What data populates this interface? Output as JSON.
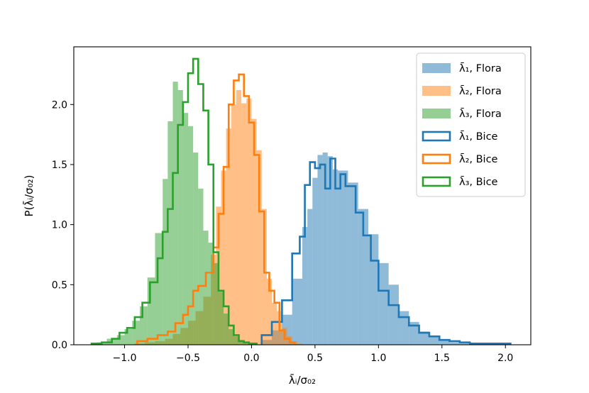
{
  "chart_data": {
    "type": "histogram",
    "xlabel": "λ̄ᵢ/σ₀₂",
    "ylabel": "P(λ̄ᵢ/σ₀₂)",
    "xlim": [
      -1.4,
      2.2
    ],
    "ylim": [
      0,
      2.48
    ],
    "xticks": [
      {
        "value": -1.0,
        "label": "−1.0"
      },
      {
        "value": -0.5,
        "label": "−0.5"
      },
      {
        "value": 0.0,
        "label": "0.0"
      },
      {
        "value": 0.5,
        "label": "0.5"
      },
      {
        "value": 1.0,
        "label": "1.0"
      },
      {
        "value": 1.5,
        "label": "1.5"
      },
      {
        "value": 2.0,
        "label": "2.0"
      }
    ],
    "yticks": [
      {
        "value": 0.0,
        "label": "0.0"
      },
      {
        "value": 0.5,
        "label": "0.5"
      },
      {
        "value": 1.0,
        "label": "1.0"
      },
      {
        "value": 1.5,
        "label": "1.5"
      },
      {
        "value": 2.0,
        "label": "2.0"
      }
    ],
    "legend": {
      "position": "upper right",
      "entries": [
        {
          "label": "λ̄₁, Flora",
          "color": "#1f77b4",
          "style": "filled"
        },
        {
          "label": "λ̄₂, Flora",
          "color": "#ff7f0e",
          "style": "filled"
        },
        {
          "label": "λ̄₃, Flora",
          "color": "#2ca02c",
          "style": "filled"
        },
        {
          "label": "λ̄₁, Bice",
          "color": "#1f77b4",
          "style": "step"
        },
        {
          "label": "λ̄₂, Bice",
          "color": "#ff7f0e",
          "style": "step"
        },
        {
          "label": "λ̄₃, Bice",
          "color": "#2ca02c",
          "style": "step"
        }
      ]
    },
    "series": [
      {
        "name": "λ̄₁, Flora",
        "style": "filled",
        "color": "#1f77b4",
        "opacity": 0.5,
        "edges": [
          0.08,
          0.16,
          0.24,
          0.32,
          0.4,
          0.44,
          0.48,
          0.52,
          0.56,
          0.6,
          0.64,
          0.68,
          0.76,
          0.84,
          0.92,
          1.0,
          1.08,
          1.16,
          1.24,
          1.32,
          1.4,
          1.48,
          1.56,
          1.64,
          1.72,
          1.8,
          1.88,
          1.96,
          2.04
        ],
        "heights": [
          0.04,
          0.12,
          0.25,
          0.55,
          0.98,
          1.13,
          1.39,
          1.58,
          1.6,
          1.57,
          1.46,
          1.45,
          1.35,
          1.13,
          0.92,
          0.68,
          0.5,
          0.28,
          0.19,
          0.11,
          0.07,
          0.04,
          0.02,
          0.02,
          0.01,
          0.01,
          0.01,
          0.01
        ]
      },
      {
        "name": "λ̄₂, Flora",
        "style": "filled",
        "color": "#ff7f0e",
        "opacity": 0.5,
        "edges": [
          -0.92,
          -0.84,
          -0.76,
          -0.68,
          -0.62,
          -0.56,
          -0.5,
          -0.44,
          -0.38,
          -0.32,
          -0.28,
          -0.24,
          -0.2,
          -0.16,
          -0.12,
          -0.08,
          -0.04,
          0.0,
          0.04,
          0.08,
          0.12,
          0.16,
          0.2,
          0.24,
          0.28,
          0.32,
          0.36,
          0.4
        ],
        "heights": [
          0.01,
          0.02,
          0.03,
          0.05,
          0.09,
          0.14,
          0.2,
          0.28,
          0.4,
          0.75,
          1.15,
          1.45,
          1.8,
          2.0,
          2.12,
          2.01,
          2.05,
          1.88,
          1.62,
          1.13,
          0.55,
          0.35,
          0.28,
          0.14,
          0.07,
          0.03,
          0.01
        ]
      },
      {
        "name": "λ̄₃, Flora",
        "style": "filled",
        "color": "#2ca02c",
        "opacity": 0.5,
        "edges": [
          -1.22,
          -1.14,
          -1.06,
          -1.0,
          -0.94,
          -0.88,
          -0.82,
          -0.76,
          -0.7,
          -0.66,
          -0.62,
          -0.58,
          -0.54,
          -0.5,
          -0.46,
          -0.42,
          -0.38,
          -0.34,
          -0.3,
          -0.26,
          -0.22,
          -0.18,
          -0.14,
          -0.1,
          -0.06,
          -0.02,
          0.04
        ],
        "heights": [
          0.02,
          0.05,
          0.08,
          0.13,
          0.2,
          0.32,
          0.56,
          0.93,
          1.38,
          1.86,
          2.19,
          2.12,
          1.93,
          1.82,
          1.6,
          1.3,
          0.95,
          0.85,
          0.68,
          0.44,
          0.26,
          0.13,
          0.07,
          0.04,
          0.02,
          0.01
        ]
      },
      {
        "name": "λ̄₁, Bice",
        "style": "step",
        "color": "#1f77b4",
        "edges": [
          0.08,
          0.16,
          0.24,
          0.32,
          0.38,
          0.42,
          0.46,
          0.5,
          0.54,
          0.58,
          0.62,
          0.66,
          0.7,
          0.74,
          0.82,
          0.88,
          0.94,
          1.0,
          1.08,
          1.16,
          1.24,
          1.32,
          1.4,
          1.48,
          1.56,
          1.64,
          1.72,
          1.8,
          1.88,
          1.96,
          2.04
        ],
        "heights": [
          0.08,
          0.19,
          0.37,
          0.76,
          0.9,
          1.33,
          1.52,
          1.47,
          1.5,
          1.3,
          1.55,
          1.3,
          1.42,
          1.32,
          1.1,
          0.91,
          0.7,
          0.45,
          0.33,
          0.23,
          0.16,
          0.1,
          0.07,
          0.04,
          0.03,
          0.02,
          0.01,
          0.01,
          0.01,
          0.01
        ]
      },
      {
        "name": "λ̄₂, Bice",
        "style": "step",
        "color": "#ff7f0e",
        "edges": [
          -0.9,
          -0.82,
          -0.74,
          -0.66,
          -0.6,
          -0.54,
          -0.5,
          -0.46,
          -0.42,
          -0.36,
          -0.3,
          -0.26,
          -0.22,
          -0.18,
          -0.14,
          -0.1,
          -0.06,
          -0.02,
          0.02,
          0.06,
          0.1,
          0.14,
          0.18,
          0.22,
          0.26,
          0.3,
          0.34
        ],
        "heights": [
          0.03,
          0.05,
          0.08,
          0.11,
          0.18,
          0.25,
          0.32,
          0.45,
          0.49,
          0.6,
          0.81,
          1.09,
          1.48,
          2.0,
          2.2,
          2.25,
          2.07,
          1.85,
          1.58,
          1.11,
          0.6,
          0.45,
          0.35,
          0.12,
          0.05,
          0.02
        ]
      },
      {
        "name": "λ̄₃, Bice",
        "style": "step",
        "color": "#2ca02c",
        "edges": [
          -1.26,
          -1.18,
          -1.1,
          -1.04,
          -0.98,
          -0.92,
          -0.86,
          -0.8,
          -0.74,
          -0.7,
          -0.66,
          -0.62,
          -0.58,
          -0.54,
          -0.5,
          -0.46,
          -0.42,
          -0.38,
          -0.34,
          -0.3,
          -0.26,
          -0.22,
          -0.18,
          -0.14,
          -0.1,
          -0.06,
          -0.02,
          0.04
        ],
        "heights": [
          0.01,
          0.02,
          0.05,
          0.1,
          0.14,
          0.23,
          0.35,
          0.52,
          0.72,
          0.94,
          1.13,
          1.43,
          1.83,
          2.02,
          2.26,
          2.38,
          2.17,
          1.95,
          1.5,
          0.77,
          0.45,
          0.32,
          0.16,
          0.08,
          0.03,
          0.02,
          0.01
        ]
      }
    ]
  }
}
